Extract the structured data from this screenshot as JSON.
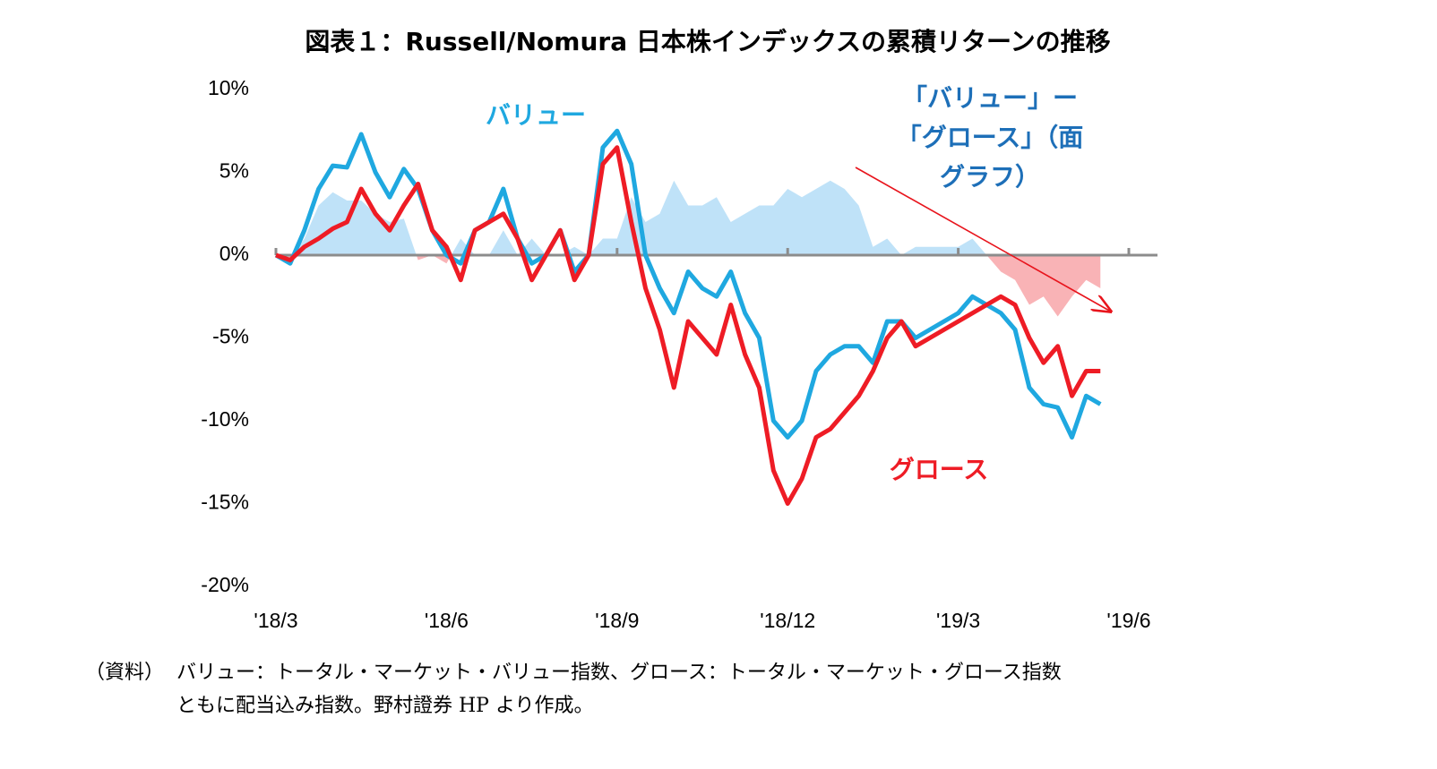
{
  "chart_data": {
    "type": "line",
    "title": "図表１：Russell/Nomura 日本株インデックスの累積リターンの推移",
    "xlim": [
      0,
      15
    ],
    "xticks": [
      {
        "value": 0,
        "label": "'18/3"
      },
      {
        "value": 3,
        "label": "'18/6"
      },
      {
        "value": 6,
        "label": "'18/9"
      },
      {
        "value": 9,
        "label": "'18/12"
      },
      {
        "value": 12,
        "label": "'19/3"
      },
      {
        "value": 15,
        "label": "'19/6"
      }
    ],
    "ylim": [
      -20,
      10
    ],
    "yticks": [
      {
        "value": 10,
        "label": "10%"
      },
      {
        "value": 5,
        "label": "5%"
      },
      {
        "value": 0,
        "label": "0%"
      },
      {
        "value": -5,
        "label": "-5%"
      },
      {
        "value": -10,
        "label": "-10%"
      },
      {
        "value": -15,
        "label": "-15%"
      },
      {
        "value": -20,
        "label": "-20%"
      }
    ],
    "x": [
      0,
      0.25,
      0.5,
      0.75,
      1,
      1.25,
      1.5,
      1.75,
      2,
      2.25,
      2.5,
      2.75,
      3,
      3.25,
      3.5,
      3.75,
      4,
      4.25,
      4.5,
      4.75,
      5,
      5.25,
      5.5,
      5.75,
      6,
      6.25,
      6.5,
      6.75,
      7,
      7.25,
      7.5,
      7.75,
      8,
      8.25,
      8.5,
      8.75,
      9,
      9.25,
      9.5,
      9.75,
      10,
      10.25,
      10.5,
      10.75,
      11,
      11.25,
      11.5,
      11.75,
      12,
      12.25,
      12.5,
      12.75,
      13,
      13.25,
      13.5,
      13.75,
      14,
      14.25,
      14.5
    ],
    "series": [
      {
        "name": "「バリュー」ー「グロース」（面グラフ）",
        "kind": "area",
        "color": "#bfe2f8",
        "negative_color": "#f9b3b6",
        "values": [
          0,
          -0.2,
          1,
          3,
          3.8,
          3.3,
          3.3,
          2.5,
          2,
          2.2,
          -0.3,
          0,
          -0.5,
          1,
          0,
          0,
          1.5,
          0,
          1,
          0,
          0,
          0.5,
          0,
          1,
          1,
          3.5,
          2,
          2.5,
          4.5,
          3,
          3,
          3.5,
          2,
          2.5,
          3,
          3,
          4,
          3.5,
          4,
          4.5,
          4,
          3,
          0.5,
          1,
          0,
          0.5,
          0.5,
          0.5,
          0.5,
          1,
          0,
          -1,
          -1.5,
          -3,
          -2.5,
          -3.7,
          -2.5,
          -1.5,
          -2
        ]
      },
      {
        "name": "バリュー",
        "color": "#1fa8e0",
        "values": [
          0,
          -0.5,
          1.5,
          4,
          5.4,
          5.3,
          7.3,
          5,
          3.5,
          5.2,
          4,
          1.5,
          0,
          -0.5,
          1.5,
          2,
          4,
          1,
          -0.5,
          0,
          1.5,
          -1,
          0,
          6.5,
          7.5,
          5.5,
          0,
          -2,
          -3.5,
          -1,
          -2,
          -2.5,
          -1,
          -3.5,
          -5,
          -10,
          -11,
          -10,
          -7,
          -6,
          -5.5,
          -5.5,
          -6.5,
          -4,
          -4,
          -5,
          -4.5,
          -4,
          -3.5,
          -2.5,
          -3,
          -3.5,
          -4.5,
          -8,
          -9,
          -9.2,
          -11,
          -8.5,
          -9
        ]
      },
      {
        "name": "グロース",
        "color": "#ee1c25",
        "values": [
          0,
          -0.3,
          0.5,
          1,
          1.6,
          2,
          4,
          2.5,
          1.5,
          3,
          4.3,
          1.5,
          0.5,
          -1.5,
          1.5,
          2,
          2.5,
          1,
          -1.5,
          0,
          1.5,
          -1.5,
          0,
          5.5,
          6.5,
          2,
          -2,
          -4.5,
          -8,
          -4,
          -5,
          -6,
          -3,
          -6,
          -8,
          -13,
          -15,
          -13.5,
          -11,
          -10.5,
          -9.5,
          -8.5,
          -7,
          -5,
          -4,
          -5.5,
          -5,
          -4.5,
          -4,
          -3.5,
          -3,
          -2.5,
          -3,
          -5,
          -6.5,
          -5.5,
          -8.5,
          -7,
          -7
        ]
      }
    ],
    "source": {
      "label": "（資料）",
      "lines": [
        "バリュー：トータル・マーケット・バリュー指数、グロース：トータル・マーケット・グロース指数",
        "ともに配当込み指数。野村證券 HP より作成。"
      ]
    }
  }
}
